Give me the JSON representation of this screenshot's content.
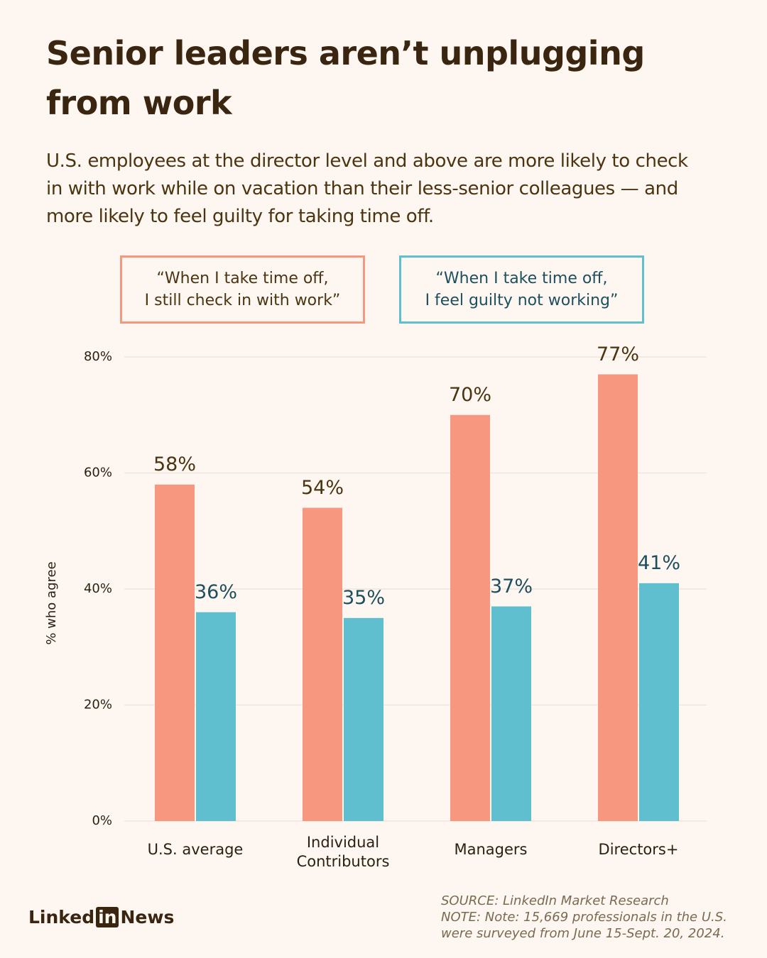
{
  "chart_data": {
    "type": "bar",
    "title": "Senior leaders aren’t unplugging from work",
    "subtitle": "U.S. employees at the director level and above are more likely to check in with work while on vacation than their less-senior colleagues — and more likely to feel guilty for taking time off.",
    "y_label": "% who agree",
    "categories": [
      "U.S. average",
      "Individual\nContributors",
      "Managers",
      "Directors+"
    ],
    "series": [
      {
        "name": "“When I take time off,\nI still check in with work”",
        "color": "#f7977f",
        "label_color": "#4a3510",
        "values": [
          58,
          54,
          70,
          77
        ],
        "value_labels": [
          "58%",
          "54%",
          "70%",
          "77%"
        ]
      },
      {
        "name": "“When I take time off,\nI feel guilty not working”",
        "color": "#5fbfcf",
        "label_color": "#1e4f5e",
        "values": [
          36,
          35,
          37,
          41
        ],
        "value_labels": [
          "36%",
          "35%",
          "37%",
          "41%"
        ]
      }
    ],
    "ylim": [
      0,
      80
    ],
    "yticks": [
      {
        "value": 0,
        "label": "0%"
      },
      {
        "value": 20,
        "label": "20%"
      },
      {
        "value": 40,
        "label": "40%"
      },
      {
        "value": 60,
        "label": "60%"
      },
      {
        "value": 80,
        "label": "80%"
      }
    ],
    "grid": true,
    "source": "SOURCE: LinkedIn Market Research",
    "note": "NOTE: Note: 15,669 professionals in the U.S.\nwere surveyed from June 15-Sept. 20, 2024."
  },
  "brand": {
    "left": "Linked",
    "in": "in",
    "right": "News"
  }
}
